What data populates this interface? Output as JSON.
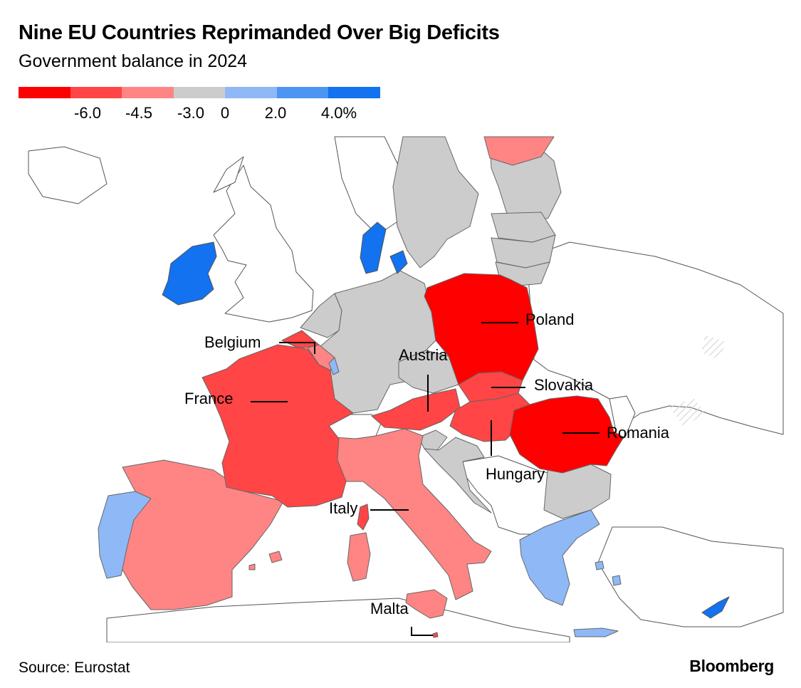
{
  "header": {
    "title": "Nine EU Countries Reprimanded Over Big Deficits",
    "subtitle": "Government balance in 2024"
  },
  "legend": {
    "colors": [
      "#ff0000",
      "#ff4545",
      "#ff8585",
      "#cccccc",
      "#8fb8f6",
      "#4d95f2",
      "#1272ef"
    ],
    "ticks": [
      "-6.0",
      "-4.5",
      "-3.0",
      "0",
      "2.0",
      "4.0%"
    ]
  },
  "map": {
    "colors": {
      "deep_red": "#ff0000",
      "red": "#ff4545",
      "light_red": "#ff8585",
      "gray": "#cccccc",
      "light_blue": "#8fb8f6",
      "blue": "#1272ef"
    },
    "labels": [
      "Poland",
      "Belgium",
      "Austria",
      "Slovakia",
      "France",
      "Romania",
      "Hungary",
      "Italy",
      "Malta"
    ]
  },
  "footer": {
    "source": "Source: Eurostat",
    "brand": "Bloomberg"
  }
}
